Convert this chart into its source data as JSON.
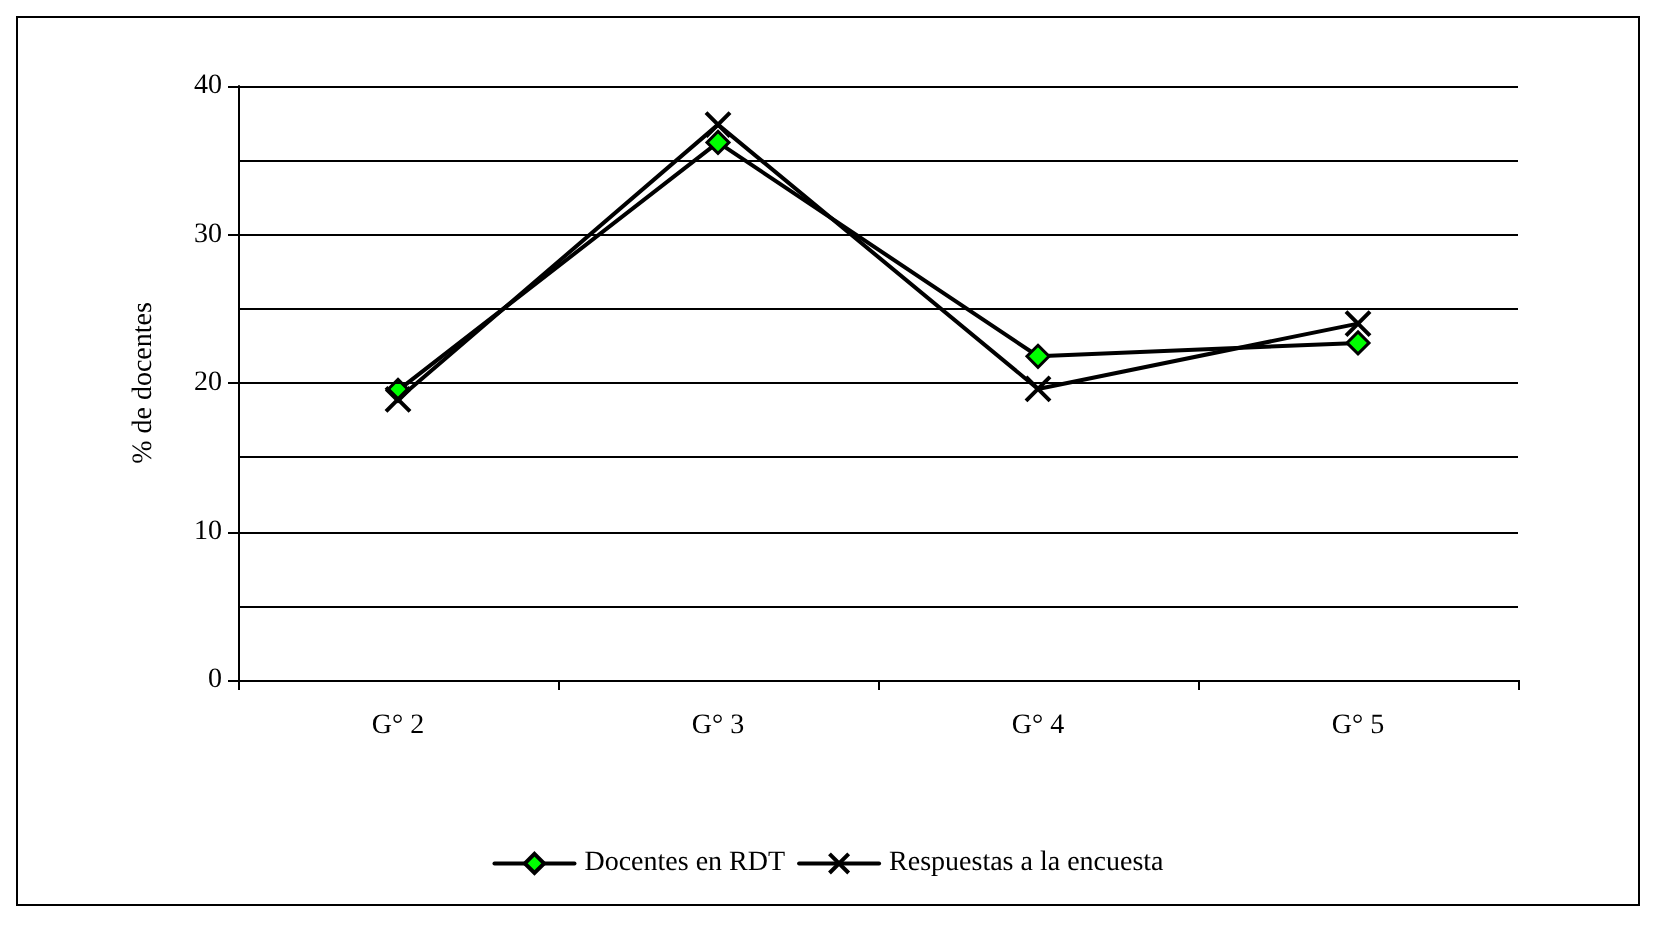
{
  "chart_data": {
    "type": "line",
    "ylabel": "% de docentes",
    "categories": [
      "G° 2",
      "G° 3",
      "G° 4",
      "G° 5"
    ],
    "series": [
      {
        "name": "Docentes en RDT",
        "color": "#00ff00",
        "marker": "diamond",
        "values": [
          19.5,
          36.2,
          21.8,
          22.7
        ]
      },
      {
        "name": "Respuestas a la encuesta",
        "color": "#000000",
        "marker": "cross",
        "values": [
          18.9,
          37.4,
          19.6,
          24.0
        ]
      }
    ],
    "ylim": [
      0,
      40
    ],
    "yticks": [
      0,
      {
        "value": 5,
        "label": null
      },
      10,
      {
        "value": 15,
        "label": null
      },
      20,
      {
        "value": 25,
        "label": null
      },
      30,
      {
        "value": 35,
        "label": null
      },
      40
    ],
    "grid": "y",
    "legend": "bottom",
    "line_style": "solid"
  }
}
